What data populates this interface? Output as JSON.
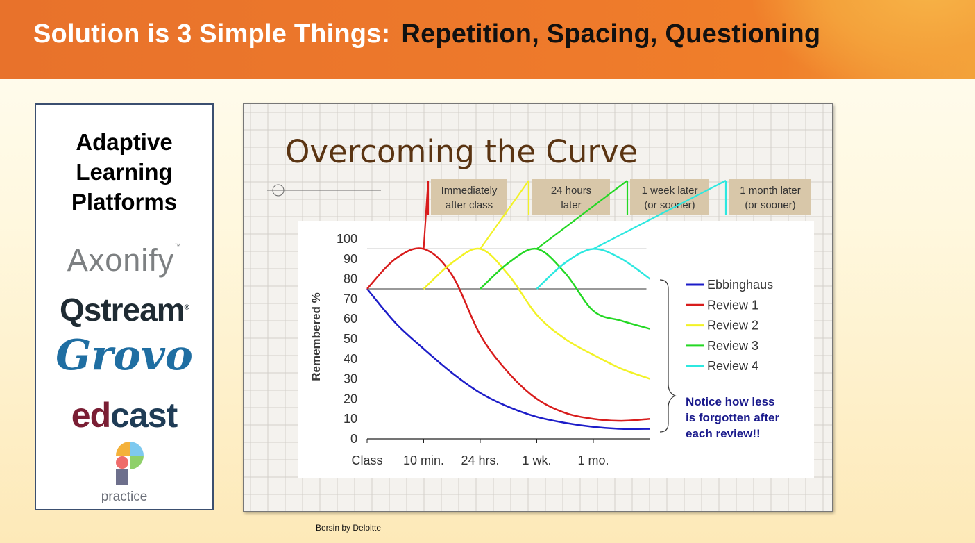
{
  "header": {
    "title_part1": "Solution is 3 Simple Things:",
    "title_part2": "Repetition, Spacing, Questioning"
  },
  "platforms": {
    "heading_lines": [
      "Adaptive",
      "Learning",
      "Platforms"
    ],
    "logos": {
      "axonify": "Axonify",
      "axonify_tm": "™",
      "qstream": "Qstream",
      "qstream_r": "®",
      "grovo": "Grovo",
      "edcast_ed": "ed",
      "edcast_cast": "cast",
      "practice": "practice"
    }
  },
  "chart_data": {
    "type": "line",
    "title": "Overcoming the Curve",
    "ylabel": "Remembered %",
    "xlabel": "",
    "ylim": [
      0,
      100
    ],
    "yticks": [
      0,
      10,
      20,
      30,
      40,
      50,
      60,
      70,
      80,
      90,
      100
    ],
    "xticks": [
      "Class",
      "10 min.",
      "24 hrs.",
      "1 wk.",
      "1 mo."
    ],
    "x": [
      0,
      0.5,
      1,
      1.5,
      2,
      2.5,
      3,
      3.5,
      4,
      4.5,
      5
    ],
    "reference_lines": [
      95,
      75
    ],
    "series": [
      {
        "name": "Ebbinghaus",
        "color": "#1c1cc8",
        "x": [
          0,
          0.5,
          1,
          1.5,
          2,
          2.5,
          3,
          3.5,
          4,
          4.5,
          5
        ],
        "values": [
          75,
          58,
          45,
          33,
          23,
          16,
          11,
          8,
          6,
          5,
          5
        ]
      },
      {
        "name": "Review 1",
        "color": "#d81c1c",
        "x": [
          0,
          0.5,
          1,
          1.5,
          2,
          2.5,
          3,
          3.5,
          4,
          4.5,
          5
        ],
        "values": [
          75,
          90,
          95,
          82,
          52,
          33,
          20,
          13,
          10,
          9,
          10
        ]
      },
      {
        "name": "Review 2",
        "color": "#f2f226",
        "x": [
          1,
          1.5,
          2,
          2.5,
          3,
          3.5,
          4,
          4.5,
          5
        ],
        "values": [
          75,
          88,
          95,
          82,
          62,
          50,
          42,
          35,
          30
        ]
      },
      {
        "name": "Review 3",
        "color": "#24d824",
        "x": [
          2,
          2.5,
          3,
          3.5,
          4,
          4.5,
          5
        ],
        "values": [
          75,
          88,
          95,
          83,
          64,
          59,
          55
        ]
      },
      {
        "name": "Review 4",
        "color": "#2ce8e0",
        "x": [
          3,
          3.5,
          4,
          4.5,
          5
        ],
        "values": [
          75,
          88,
          95,
          90,
          80
        ]
      }
    ],
    "callouts": [
      {
        "lines": [
          "Immediately",
          "after class"
        ],
        "series": "Review 1"
      },
      {
        "lines": [
          "24 hours",
          "later"
        ],
        "series": "Review 2"
      },
      {
        "lines": [
          "1 week later",
          "(or sooner)"
        ],
        "series": "Review 3"
      },
      {
        "lines": [
          "1 month later",
          "(or sooner)"
        ],
        "series": "Review 4"
      }
    ],
    "annotation": [
      "Notice how less",
      "is forgotten after",
      "each review!!"
    ],
    "legend_position": "right",
    "grid": true
  },
  "footer": {
    "credit": "Bersin by Deloitte"
  }
}
